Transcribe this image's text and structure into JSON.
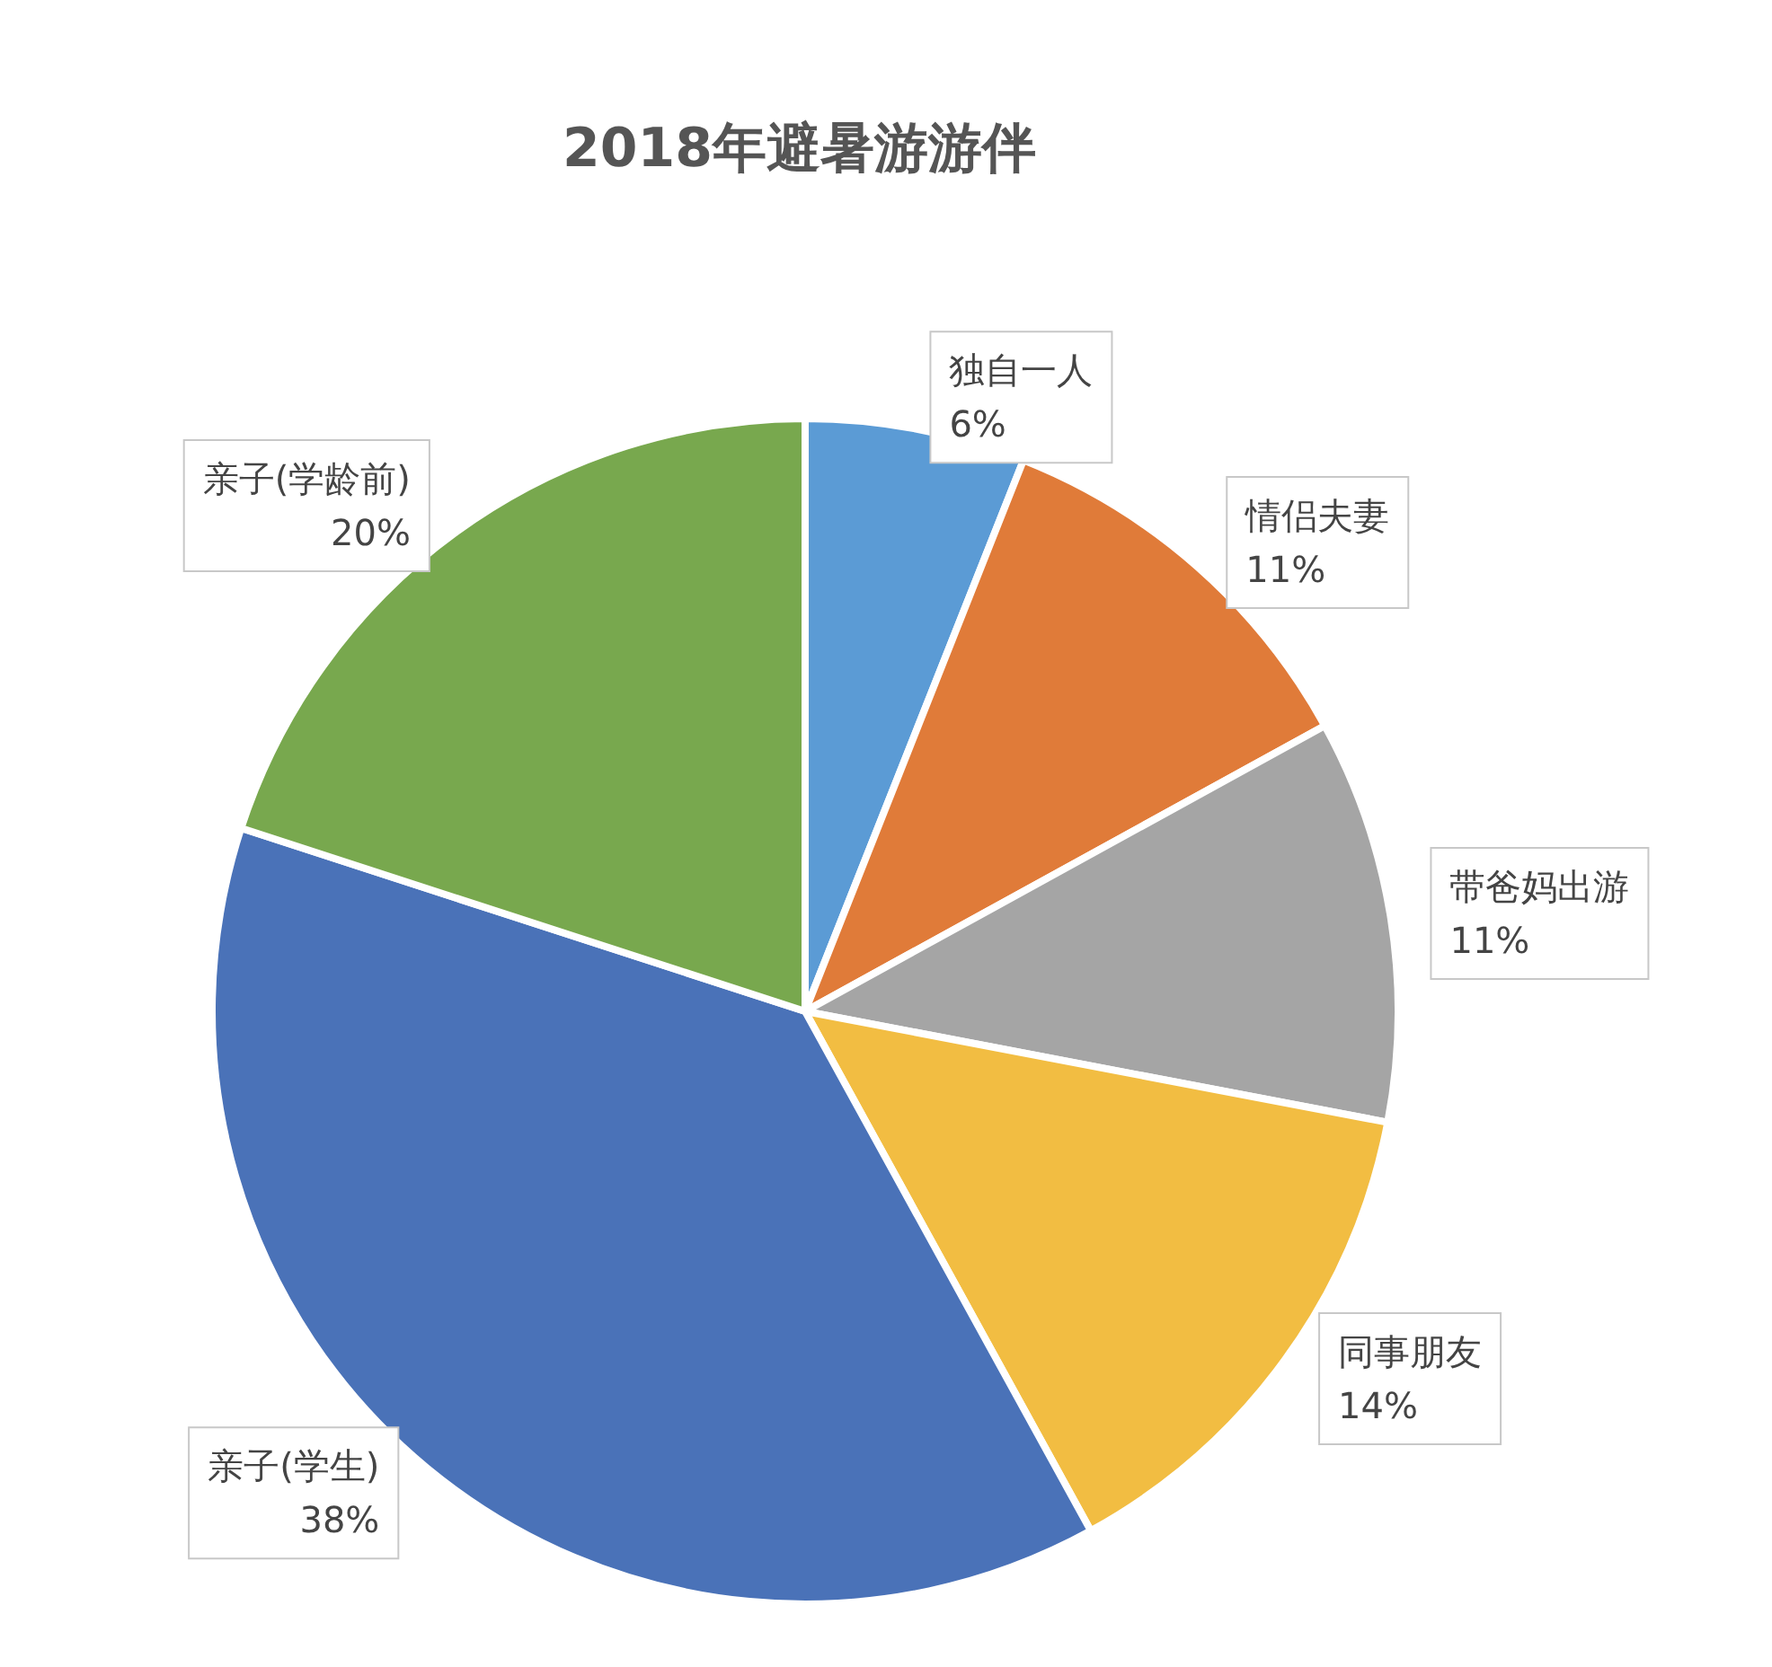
{
  "chart_data": {
    "type": "pie",
    "title": "2018年避暑游游伴",
    "categories": [
      "独自一人",
      "情侣夫妻",
      "带爸妈出游",
      "同事朋友",
      "亲子(学生)",
      "亲子(学龄前)"
    ],
    "values": [
      6,
      11,
      11,
      14,
      38,
      20
    ],
    "value_labels": [
      "6%",
      "11%",
      "11%",
      "14%",
      "38%",
      "20%"
    ],
    "colors": [
      "#5b9bd5",
      "#e07b39",
      "#a5a5a5",
      "#f2bd42",
      "#4a72b8",
      "#78a84e"
    ],
    "legend": false
  }
}
